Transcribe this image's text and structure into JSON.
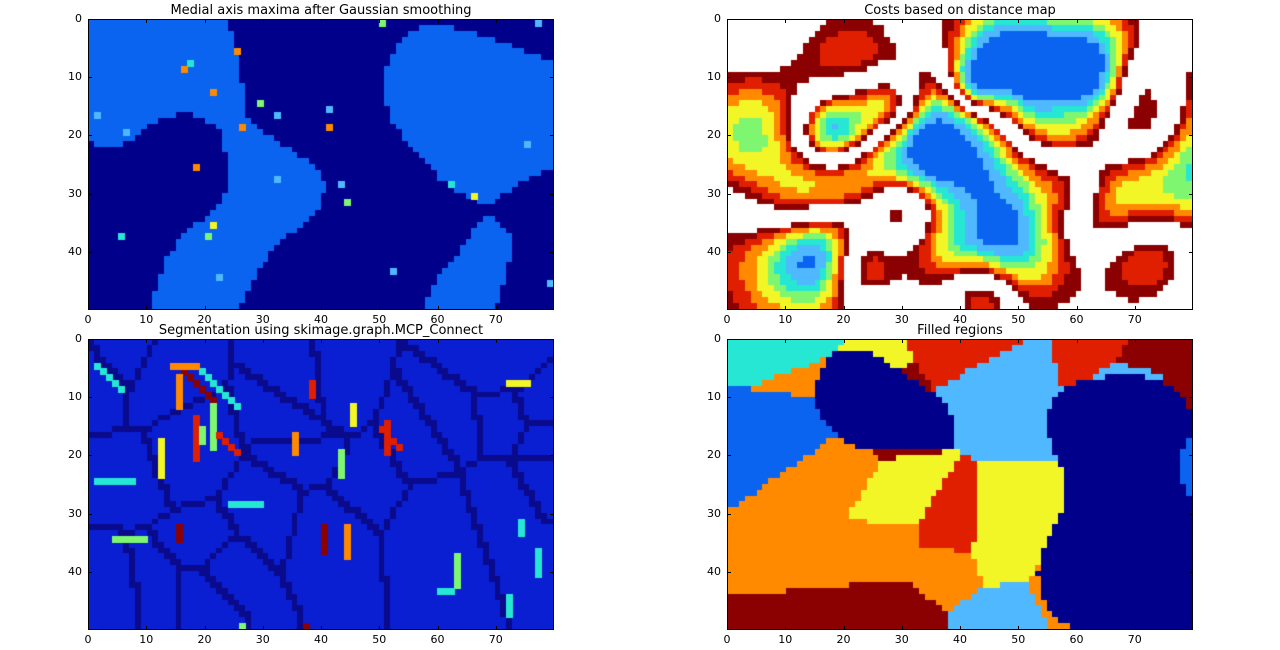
{
  "chart_data": [
    {
      "type": "heatmap",
      "title": "Medial axis maxima after Gaussian smoothing",
      "xlim": [
        0,
        80
      ],
      "ylim": [
        0,
        50
      ],
      "y_inverted": true,
      "x_ticks": [
        0,
        10,
        20,
        30,
        40,
        50,
        60,
        70
      ],
      "y_ticks": [
        0,
        10,
        20,
        30,
        40
      ],
      "colormap": "jet",
      "grid": false
    },
    {
      "type": "heatmap",
      "title": "Costs based on distance map",
      "xlim": [
        0,
        80
      ],
      "ylim": [
        0,
        50
      ],
      "y_inverted": true,
      "x_ticks": [
        0,
        10,
        20,
        30,
        40,
        50,
        60,
        70
      ],
      "y_ticks": [
        0,
        10,
        20,
        30,
        40
      ],
      "colormap": "jet",
      "grid": false
    },
    {
      "type": "heatmap",
      "title": "Segmentation using skimage.graph.MCP_Connect",
      "xlim": [
        0,
        80
      ],
      "ylim": [
        0,
        50
      ],
      "y_inverted": true,
      "x_ticks": [
        0,
        10,
        20,
        30,
        40,
        50,
        60,
        70
      ],
      "y_ticks": [
        0,
        10,
        20,
        30,
        40
      ],
      "colormap": "jet",
      "grid": false
    },
    {
      "type": "heatmap",
      "title": "Filled regions",
      "xlim": [
        0,
        80
      ],
      "ylim": [
        0,
        50
      ],
      "y_inverted": true,
      "x_ticks": [
        0,
        10,
        20,
        30,
        40,
        50,
        60,
        70
      ],
      "y_ticks": [
        0,
        10,
        20,
        30,
        40
      ],
      "colormap": "jet",
      "grid": false
    }
  ],
  "colors": {
    "dark_navy": "#00008b",
    "blue": "#0a64f0",
    "light_blue": "#4fb8ff",
    "cyan": "#26e6d4",
    "green": "#7ff66f",
    "yellow": "#f2f526",
    "orange": "#ff8a00",
    "red": "#e01f00",
    "dark_red": "#8b0000",
    "white": "#ffffff"
  }
}
